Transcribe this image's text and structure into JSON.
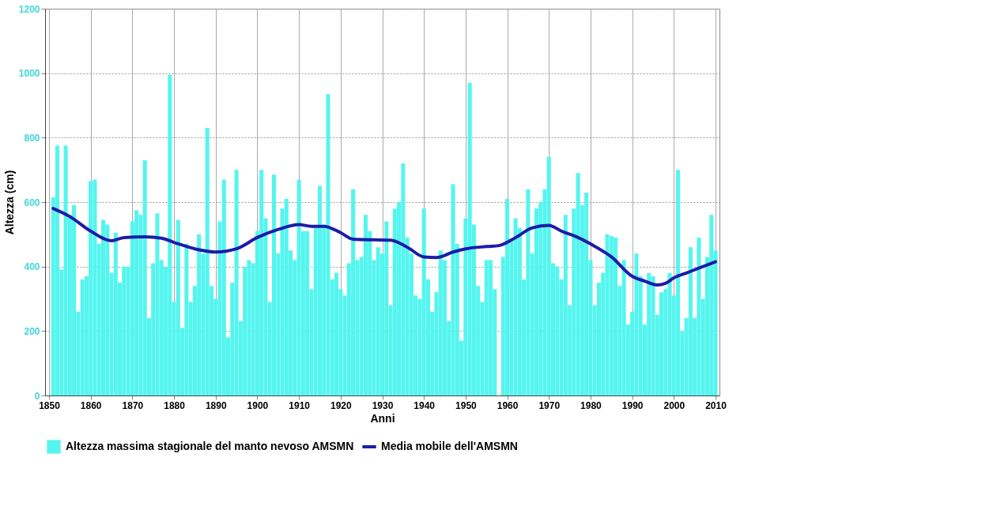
{
  "chart_data": {
    "type": "bar",
    "xlabel": "Anni",
    "ylabel": "Altezza (cm)",
    "xlim": [
      1850,
      2010
    ],
    "xticks": [
      1850,
      1860,
      1870,
      1880,
      1890,
      1900,
      1910,
      1920,
      1930,
      1940,
      1950,
      1960,
      1970,
      1980,
      1990,
      2000,
      2010
    ],
    "ylim": [
      0,
      1200
    ],
    "yticks": [
      0,
      200,
      400,
      600,
      800,
      1000,
      1200
    ],
    "grid": true,
    "legend": "bottom",
    "x": [
      1851,
      1852,
      1853,
      1854,
      1855,
      1856,
      1857,
      1858,
      1859,
      1860,
      1861,
      1862,
      1863,
      1864,
      1865,
      1866,
      1867,
      1868,
      1869,
      1870,
      1871,
      1872,
      1873,
      1874,
      1875,
      1876,
      1877,
      1878,
      1879,
      1880,
      1881,
      1882,
      1883,
      1884,
      1885,
      1886,
      1887,
      1888,
      1889,
      1890,
      1891,
      1892,
      1893,
      1894,
      1895,
      1896,
      1897,
      1898,
      1899,
      1900,
      1901,
      1902,
      1903,
      1904,
      1905,
      1906,
      1907,
      1908,
      1909,
      1910,
      1911,
      1912,
      1913,
      1914,
      1915,
      1916,
      1917,
      1918,
      1919,
      1920,
      1921,
      1922,
      1923,
      1924,
      1925,
      1926,
      1927,
      1928,
      1929,
      1930,
      1931,
      1932,
      1933,
      1934,
      1935,
      1936,
      1937,
      1938,
      1939,
      1940,
      1941,
      1942,
      1943,
      1944,
      1945,
      1946,
      1947,
      1948,
      1949,
      1950,
      1951,
      1952,
      1953,
      1954,
      1955,
      1956,
      1957,
      1958,
      1959,
      1960,
      1961,
      1962,
      1963,
      1964,
      1965,
      1966,
      1967,
      1968,
      1969,
      1970,
      1971,
      1972,
      1973,
      1974,
      1975,
      1976,
      1977,
      1978,
      1979,
      1980,
      1981,
      1982,
      1983,
      1984,
      1985,
      1986,
      1987,
      1988,
      1989,
      1990,
      1991,
      1992,
      1993,
      1994,
      1995,
      1996,
      1997,
      1998,
      1999,
      2000,
      2001,
      2002,
      2003,
      2004,
      2005,
      2006,
      2007,
      2008,
      2009,
      2010
    ],
    "series": [
      {
        "name": "Altezza massima stagionale del manto nevoso AMSMN",
        "color": "#55f5ef",
        "values": [
          615,
          775,
          390,
          775,
          560,
          590,
          260,
          360,
          370,
          665,
          670,
          470,
          545,
          530,
          380,
          505,
          350,
          400,
          400,
          540,
          575,
          560,
          730,
          240,
          410,
          565,
          420,
          400,
          995,
          290,
          545,
          210,
          470,
          290,
          340,
          500,
          440,
          830,
          340,
          300,
          540,
          670,
          180,
          350,
          700,
          230,
          400,
          420,
          410,
          510,
          700,
          550,
          290,
          685,
          440,
          580,
          610,
          450,
          420,
          670,
          510,
          510,
          330,
          520,
          650,
          530,
          935,
          360,
          380,
          330,
          310,
          410,
          640,
          420,
          430,
          560,
          510,
          420,
          460,
          440,
          540,
          280,
          580,
          600,
          720,
          490,
          440,
          310,
          300,
          580,
          360,
          260,
          320,
          450,
          420,
          230,
          655,
          470,
          170,
          550,
          970,
          530,
          340,
          290,
          420,
          420,
          330,
          null,
          430,
          610,
          480,
          550,
          520,
          360,
          640,
          440,
          580,
          600,
          640,
          740,
          410,
          400,
          360,
          560,
          280,
          580,
          690,
          590,
          630,
          420,
          280,
          350,
          380,
          500,
          495,
          490,
          340,
          420,
          220,
          260,
          440,
          370,
          220,
          380,
          370,
          250,
          320,
          330,
          380,
          310,
          700,
          200,
          240,
          460,
          240,
          490,
          300,
          430,
          560,
          450
        ]
      },
      {
        "name": "Media mobile dell'AMSMN",
        "color": "#1c1ca8",
        "type": "line",
        "x": [
          1851,
          1855,
          1860,
          1865,
          1868,
          1873,
          1877,
          1880,
          1885,
          1890,
          1895,
          1900,
          1905,
          1910,
          1913,
          1916,
          1920,
          1923,
          1928,
          1932,
          1936,
          1940,
          1943,
          1947,
          1950,
          1955,
          1958,
          1962,
          1966,
          1970,
          1973,
          1977,
          1980,
          1985,
          1990,
          1993,
          1996,
          1998,
          2000,
          2003,
          2006,
          2010
        ],
        "values": [
          580,
          555,
          510,
          480,
          490,
          492,
          488,
          475,
          455,
          445,
          455,
          490,
          515,
          530,
          525,
          525,
          505,
          485,
          483,
          482,
          460,
          430,
          428,
          445,
          455,
          462,
          465,
          490,
          520,
          528,
          510,
          490,
          470,
          430,
          370,
          355,
          343,
          348,
          365,
          380,
          395,
          415
        ]
      }
    ]
  }
}
